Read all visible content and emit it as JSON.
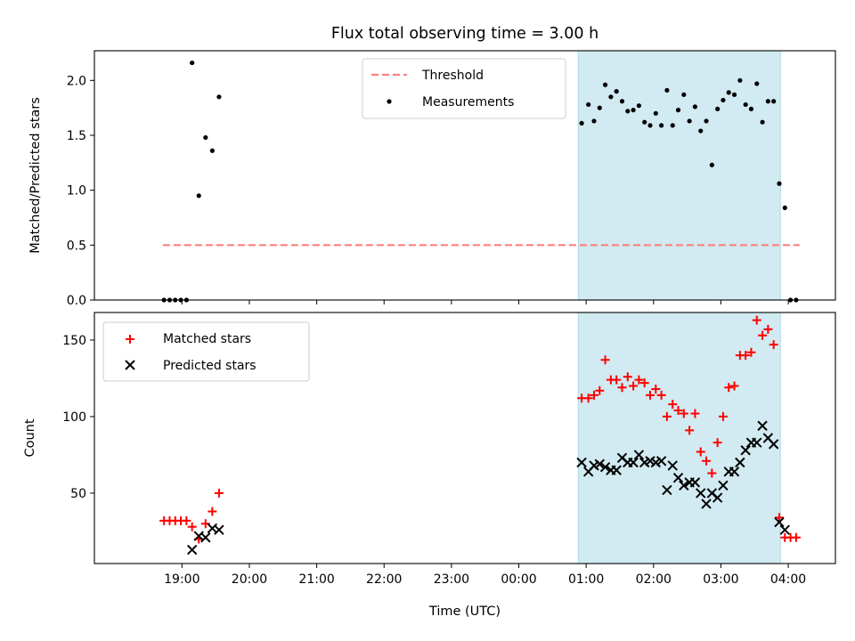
{
  "title": "Flux total observing time = 3.00 h",
  "x_axis": {
    "label": "Time (UTC)",
    "ticks": [
      "19:00",
      "20:00",
      "21:00",
      "22:00",
      "23:00",
      "00:00",
      "01:00",
      "02:00",
      "03:00",
      "04:00"
    ],
    "range_hours": [
      17.7,
      28.7
    ]
  },
  "colors": {
    "threshold": "#ff7f7f",
    "measurements": "#000000",
    "matched": "#ff0000",
    "predicted": "#000000",
    "observing_span": "#add8e6"
  },
  "chart_data": [
    {
      "type": "scatter",
      "panel": "top",
      "ylabel": "Matched/Predicted stars",
      "ylim": [
        0,
        2.27
      ],
      "yticks": [
        "0.0",
        "0.5",
        "1.0",
        "1.5",
        "2.0"
      ],
      "ytick_values": [
        0,
        0.5,
        1.0,
        1.5,
        2.0
      ],
      "legend": {
        "placement": "upper center",
        "entries": [
          "Threshold",
          "Measurements"
        ]
      },
      "observing_span": {
        "start": "00:53",
        "end": "03:53"
      },
      "threshold": {
        "name": "Threshold",
        "value": 0.5,
        "x_start": "18:43",
        "x_end": "04:10"
      },
      "series": [
        {
          "name": "Measurements",
          "x": [
            "18:44",
            "18:49",
            "18:54",
            "18:59",
            "19:04",
            "19:09",
            "19:15",
            "19:21",
            "19:27",
            "19:33",
            "00:56",
            "01:02",
            "01:07",
            "01:12",
            "01:17",
            "01:22",
            "01:27",
            "01:32",
            "01:37",
            "01:42",
            "01:47",
            "01:52",
            "01:57",
            "02:02",
            "02:07",
            "02:12",
            "02:17",
            "02:22",
            "02:27",
            "02:32",
            "02:37",
            "02:42",
            "02:47",
            "02:52",
            "02:57",
            "03:02",
            "03:07",
            "03:12",
            "03:17",
            "03:22",
            "03:27",
            "03:32",
            "03:37",
            "03:42",
            "03:47",
            "03:52",
            "03:57",
            "04:02",
            "04:07"
          ],
          "y": [
            0,
            0,
            0,
            0,
            0,
            2.16,
            0.95,
            1.48,
            1.36,
            1.85,
            1.61,
            1.78,
            1.63,
            1.75,
            1.96,
            1.85,
            1.9,
            1.81,
            1.72,
            1.73,
            1.77,
            1.62,
            1.59,
            1.7,
            1.59,
            1.91,
            1.59,
            1.73,
            1.87,
            1.63,
            1.76,
            1.54,
            1.63,
            1.23,
            1.74,
            1.82,
            1.89,
            1.87,
            2.0,
            1.78,
            1.74,
            1.97,
            1.62,
            1.81,
            1.81,
            1.06,
            0.84,
            0,
            0
          ]
        }
      ]
    },
    {
      "type": "scatter",
      "panel": "bottom",
      "ylabel": "Count",
      "xlabel": "Time (UTC)",
      "ylim": [
        4,
        168
      ],
      "yticks": [
        "50",
        "100",
        "150"
      ],
      "ytick_values": [
        50,
        100,
        150
      ],
      "legend": {
        "placement": "upper left",
        "entries": [
          "Matched stars",
          "Predicted stars"
        ]
      },
      "observing_span": {
        "start": "00:53",
        "end": "03:53"
      },
      "series": [
        {
          "name": "Matched stars",
          "marker": "plus",
          "x": [
            "18:44",
            "18:49",
            "18:54",
            "18:59",
            "19:04",
            "19:09",
            "19:15",
            "19:21",
            "19:27",
            "19:33",
            "00:56",
            "01:02",
            "01:07",
            "01:12",
            "01:17",
            "01:22",
            "01:27",
            "01:32",
            "01:37",
            "01:42",
            "01:47",
            "01:52",
            "01:57",
            "02:02",
            "02:07",
            "02:12",
            "02:17",
            "02:22",
            "02:27",
            "02:32",
            "02:37",
            "02:42",
            "02:47",
            "02:52",
            "02:57",
            "03:02",
            "03:07",
            "03:12",
            "03:17",
            "03:22",
            "03:27",
            "03:32",
            "03:37",
            "03:42",
            "03:47",
            "03:52",
            "03:57",
            "04:02",
            "04:07"
          ],
          "y": [
            32,
            32,
            32,
            32,
            32,
            28,
            20,
            30,
            38,
            50,
            112,
            112,
            114,
            117,
            137,
            124,
            124,
            119,
            126,
            120,
            124,
            122,
            114,
            118,
            114,
            100,
            108,
            104,
            102,
            91,
            102,
            77,
            71,
            63,
            83,
            100,
            119,
            120,
            140,
            140,
            142,
            163,
            153,
            157,
            147,
            34,
            21,
            21,
            21
          ]
        },
        {
          "name": "Predicted stars",
          "marker": "x",
          "x": [
            "19:09",
            "19:15",
            "19:21",
            "19:27",
            "19:33",
            "00:56",
            "01:02",
            "01:07",
            "01:12",
            "01:17",
            "01:22",
            "01:27",
            "01:32",
            "01:37",
            "01:42",
            "01:47",
            "01:52",
            "01:57",
            "02:02",
            "02:07",
            "02:12",
            "02:17",
            "02:22",
            "02:27",
            "02:32",
            "02:37",
            "02:42",
            "02:47",
            "02:52",
            "02:57",
            "03:02",
            "03:07",
            "03:12",
            "03:17",
            "03:22",
            "03:27",
            "03:32",
            "03:37",
            "03:42",
            "03:47",
            "03:52",
            "03:57"
          ],
          "y": [
            13,
            22,
            21,
            27,
            26,
            70,
            64,
            68,
            69,
            67,
            65,
            65,
            73,
            70,
            70,
            75,
            70,
            71,
            70,
            71,
            52,
            68,
            60,
            55,
            57,
            57,
            50,
            43,
            50,
            47,
            55,
            64,
            64,
            70,
            78,
            83,
            83,
            94,
            86,
            82,
            31,
            26
          ]
        }
      ]
    }
  ]
}
